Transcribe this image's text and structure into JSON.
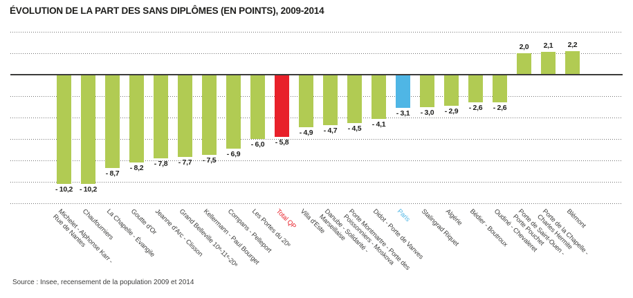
{
  "header": {
    "title": "ÉVOLUTION DE LA PART DES SANS DIPLÔMES (EN POINTS), 2009-2014"
  },
  "source": "Source : Insee, recensement de la population 2009 et 2014",
  "colors": {
    "bar_default": "#b1cb53",
    "bar_total_qp": "#e8212a",
    "bar_paris": "#4fb6e5",
    "zero_line": "#3a3a39",
    "gridline": "#6e6e6e",
    "value_text": "#1d1d1b",
    "axis_text": "#3d3d3c"
  },
  "chart_data": {
    "type": "bar",
    "title": "ÉVOLUTION DE LA PART DES SANS DIPLÔMES (EN POINTS), 2009-2014",
    "xlabel": "",
    "ylabel": "",
    "ylim": [
      -12,
      4
    ],
    "gridline_step": 2,
    "grid": "horizontal-dotted",
    "legend_position": "none",
    "categories": [
      "Michelet - Alphonse Karr -\nRue de Nantes",
      "Chaufourniers",
      "La Chapelle - Évangile",
      "Goutte d'Or",
      "Jeanne d'Arc - Clisson",
      "Grand Belleville 10ᵉ-11ᵉ-20ᵉ",
      "Kellermann - Paul Bourget",
      "Compans - Pelleport",
      "Les Portes du 20ᵉ",
      "Total QP",
      "Villa d'Este",
      "Danube - Solidarité -\nMarseillaise",
      "Porte Montmartre - Porte des\nPoissonniers - Moskova",
      "Didot - Porte de Vanves",
      "Paris",
      "Stalingrad Riquet",
      "Algérie",
      "Bédier - Boutroux",
      "Oudiné - Chevaleret",
      "Porte de Saint-Ouen -\nPorte Pouchet",
      "Porte de la Chapelle -\nCharles Hermite",
      "Blémont"
    ],
    "values": [
      -10.2,
      -10.2,
      -8.7,
      -8.2,
      -7.8,
      -7.7,
      -7.5,
      -6.9,
      -6.0,
      -5.8,
      -4.9,
      -4.7,
      -4.5,
      -4.1,
      -3.1,
      -3.0,
      -2.9,
      -2.6,
      -2.6,
      2.0,
      2.1,
      2.2
    ],
    "value_labels": [
      "- 10,2",
      "- 10,2",
      "- 8,7",
      "- 8,2",
      "- 7,8",
      "- 7,7",
      "- 7,5",
      "- 6,9",
      "- 6,0",
      "- 5,8",
      "- 4,9",
      "- 4,7",
      "- 4,5",
      "- 4,1",
      "- 3,1",
      "- 3,0",
      "- 2,9",
      "- 2,6",
      "- 2,6",
      "2,0",
      "2,1",
      "2,2"
    ],
    "highlights": [
      "default",
      "default",
      "default",
      "default",
      "default",
      "default",
      "default",
      "default",
      "default",
      "total_qp",
      "default",
      "default",
      "default",
      "default",
      "paris",
      "default",
      "default",
      "default",
      "default",
      "default",
      "default",
      "default"
    ]
  }
}
